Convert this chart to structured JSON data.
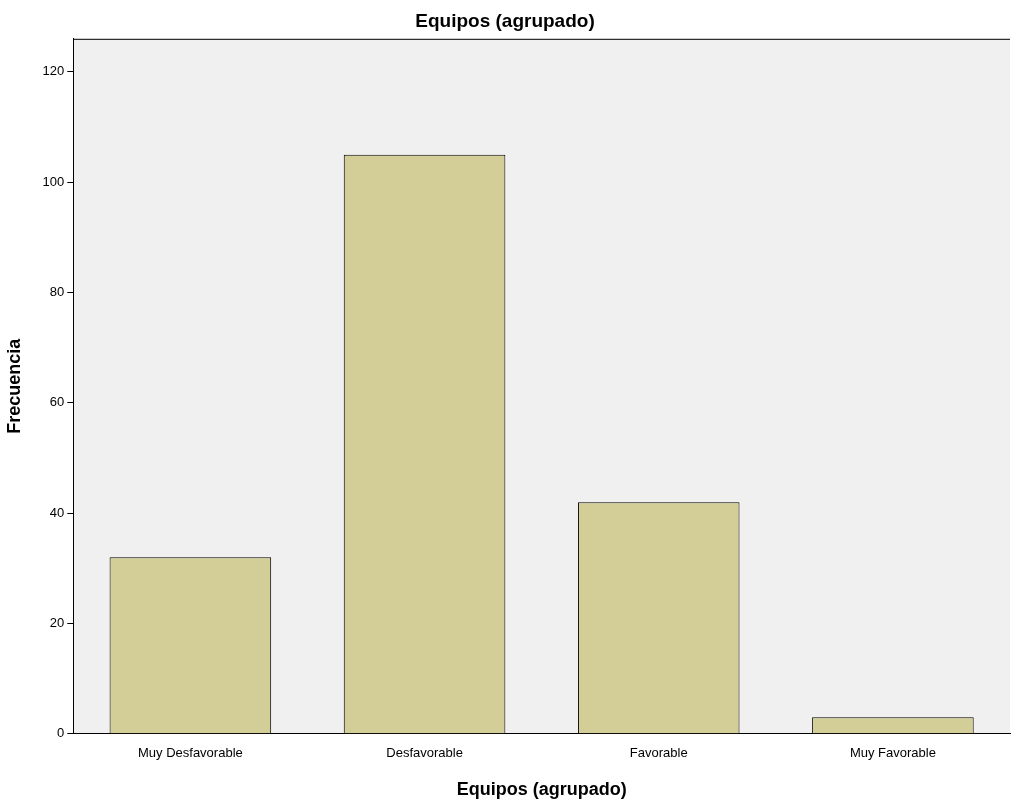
{
  "chart_data": {
    "type": "bar",
    "title": "Equipos (agrupado)",
    "xlabel": "Equipos (agrupado)",
    "ylabel": "Frecuencia",
    "categories": [
      "Muy Desfavorable",
      "Desfavorable",
      "Favorable",
      "Muy Favorable"
    ],
    "values": [
      32,
      105,
      42,
      3
    ],
    "color": "#d3ce97",
    "ylim": [
      0,
      126
    ],
    "yticks": [
      0,
      20,
      40,
      60,
      80,
      100,
      120
    ],
    "grid": false,
    "legend": false
  }
}
